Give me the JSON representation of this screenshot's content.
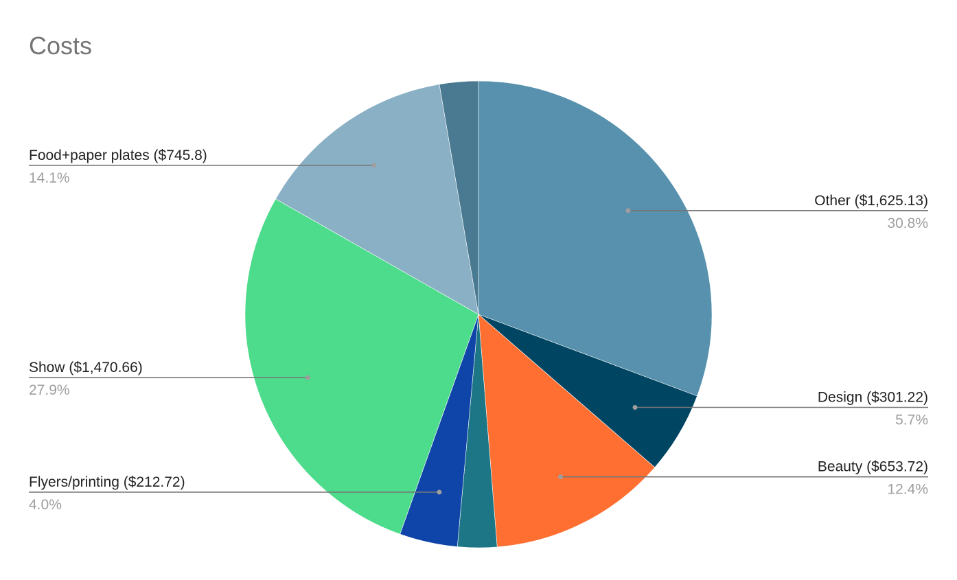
{
  "chart_data": {
    "type": "pie",
    "title": "Costs",
    "start_angle_deg": 0,
    "direction": "clockwise",
    "slices": [
      {
        "label": "Other ($1,625.13)",
        "category": "Other",
        "value": 1625.13,
        "percent_label": "30.8%",
        "color": "#5891AE",
        "show_label": true,
        "label_side": "right"
      },
      {
        "label": "Design ($301.22)",
        "category": "Design",
        "value": 301.22,
        "percent_label": "5.7%",
        "color": "#004561",
        "show_label": true,
        "label_side": "right"
      },
      {
        "label": "Beauty ($653.72)",
        "category": "Beauty",
        "value": 653.72,
        "percent_label": "12.4%",
        "color": "#FF6F31",
        "show_label": true,
        "label_side": "right"
      },
      {
        "label": "",
        "category": "",
        "value": 144.0,
        "percent_label": "",
        "color": "#1C7685",
        "show_label": false,
        "label_side": ""
      },
      {
        "label": "Flyers/printing ($212.72)",
        "category": "Flyers/printing",
        "value": 212.72,
        "percent_label": "4.0%",
        "color": "#0F45A8",
        "show_label": true,
        "label_side": "left"
      },
      {
        "label": "Show ($1,470.66)",
        "category": "Show",
        "value": 1470.66,
        "percent_label": "27.9%",
        "color": "#4CDC8B",
        "show_label": true,
        "label_side": "left"
      },
      {
        "label": "Food+paper plates ($745.8)",
        "category": "Food+paper plates",
        "value": 745.8,
        "percent_label": "14.1%",
        "color": "#8AB0C5",
        "show_label": true,
        "label_side": "left"
      },
      {
        "label": "",
        "category": "",
        "value": 142.0,
        "percent_label": "",
        "color": "#4A7A91",
        "show_label": false,
        "label_side": ""
      }
    ],
    "legend": "none",
    "colors": {
      "title": "#757575",
      "label": "#222222",
      "percent": "#9e9e9e",
      "leader": "#777777",
      "dot": "#9e9e9e"
    }
  }
}
